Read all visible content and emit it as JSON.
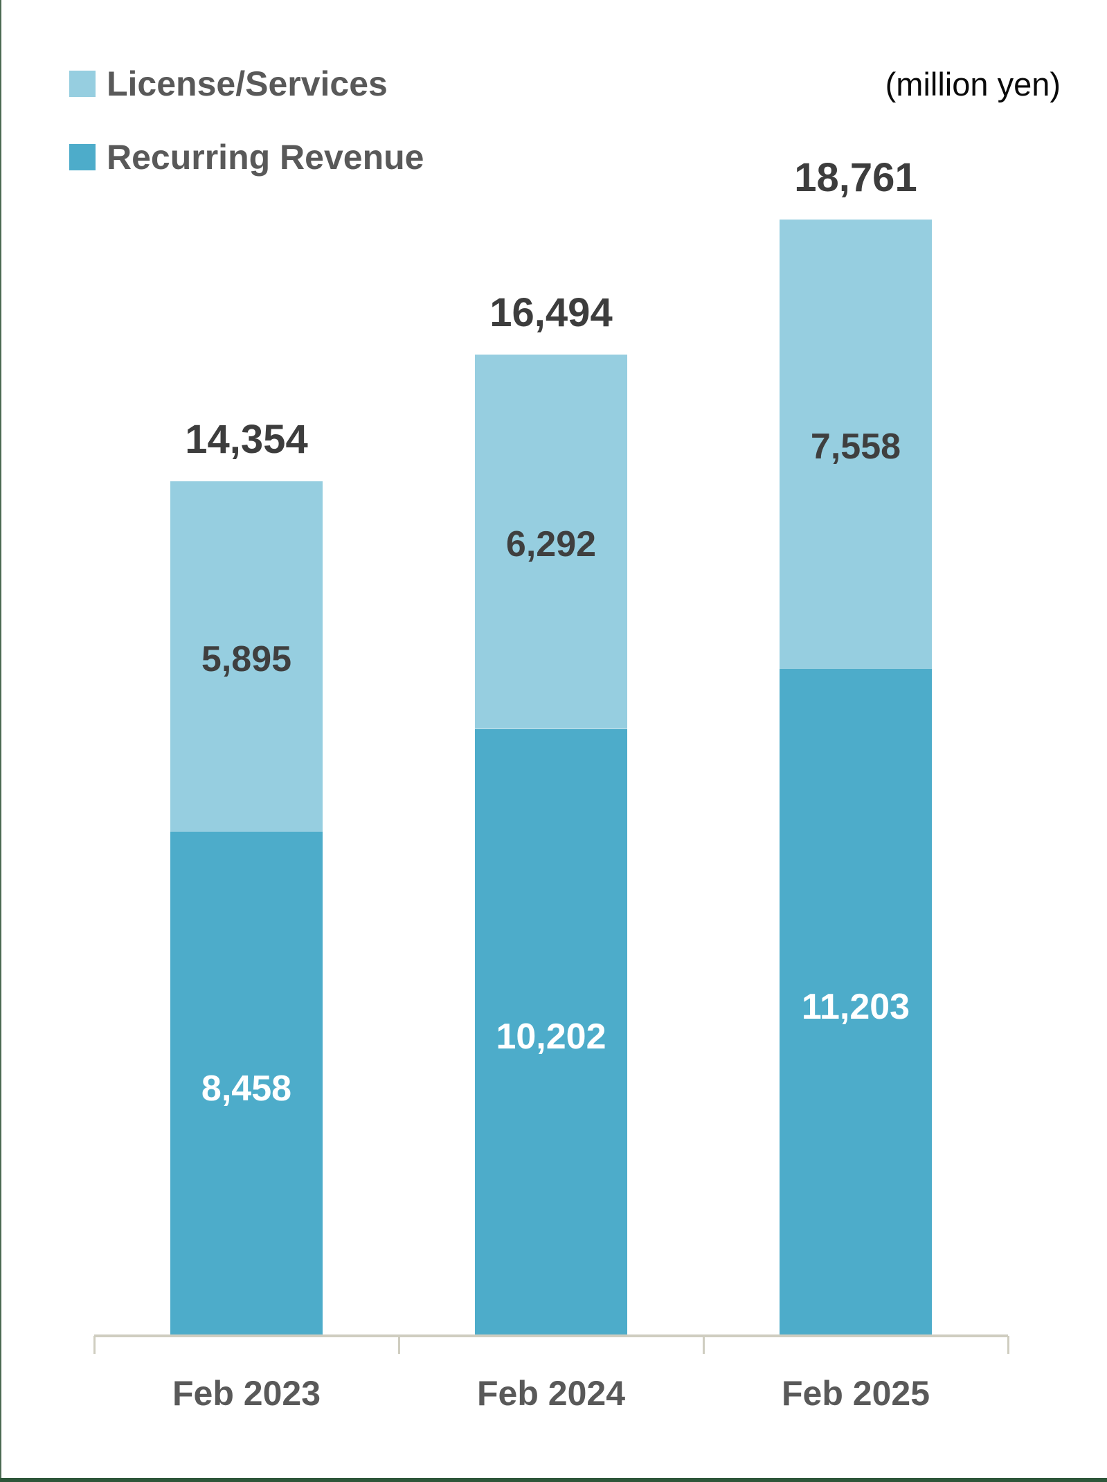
{
  "unit_label": "(million yen)",
  "legend": {
    "items": [
      {
        "label": "License/Services",
        "color": "#96CEE0"
      },
      {
        "label": "Recurring Revenue",
        "color": "#4DACCA"
      }
    ]
  },
  "chart_data": {
    "type": "bar",
    "stacked": true,
    "orientation": "vertical",
    "title": "",
    "unit": "million yen",
    "categories": [
      "Feb 2023",
      "Feb 2024",
      "Feb 2025"
    ],
    "series": [
      {
        "name": "Recurring Revenue",
        "color": "#4DACCA",
        "label_color": "#FFFFFF",
        "values": [
          8458,
          10202,
          11203
        ]
      },
      {
        "name": "License/Services",
        "color": "#96CEE0",
        "label_color": "#3F3F3F",
        "values": [
          5895,
          6292,
          7558
        ]
      }
    ],
    "totals": [
      14354,
      16494,
      18761
    ],
    "ylim": [
      0,
      19000
    ],
    "grid": false,
    "legend_position": "top-left",
    "axis_line_color": "#CFCDC0"
  },
  "styles": {
    "accent_light": "#96CEE0",
    "accent_dark": "#4DACCA",
    "legend_text": "#595959",
    "total_text": "#3D3D3D",
    "category_text": "#595959",
    "unit_text": "#0a0a0a",
    "axis_line": "#CFCDC0",
    "border_left": "#4C6B52",
    "border_bottom": "#2D5639",
    "background": "#ffffff"
  }
}
